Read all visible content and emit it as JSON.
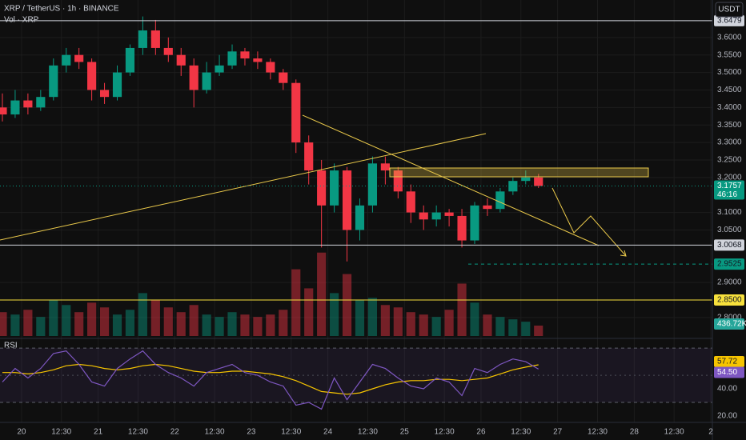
{
  "chart_data": {
    "type": "candlestick",
    "title": "XRP / TetherUS · 1h · BINANCE",
    "volume_title": "Vol · XRP",
    "currency": "USDT",
    "x": [
      -6,
      -2,
      2,
      6,
      10,
      14,
      18,
      22,
      26,
      30,
      34,
      38,
      42,
      46,
      50,
      54,
      58,
      62,
      66,
      70,
      74,
      78,
      82,
      86,
      90,
      94,
      98,
      102,
      106,
      110,
      114,
      118,
      122,
      126,
      130,
      134,
      138,
      142,
      146,
      150,
      154,
      158,
      162
    ],
    "open": [
      3.4,
      3.38,
      3.42,
      3.4,
      3.43,
      3.52,
      3.55,
      3.53,
      3.45,
      3.43,
      3.5,
      3.57,
      3.62,
      3.57,
      3.55,
      3.52,
      3.45,
      3.5,
      3.52,
      3.56,
      3.54,
      3.53,
      3.5,
      3.47,
      3.3,
      3.22,
      3.12,
      3.22,
      3.05,
      3.12,
      3.24,
      3.22,
      3.16,
      3.1,
      3.08,
      3.1,
      3.09,
      3.02,
      3.12,
      3.11,
      3.16,
      3.19,
      3.2
    ],
    "high": [
      3.44,
      3.45,
      3.44,
      3.45,
      3.54,
      3.57,
      3.57,
      3.54,
      3.47,
      3.52,
      3.58,
      3.66,
      3.65,
      3.6,
      3.57,
      3.54,
      3.53,
      3.55,
      3.58,
      3.57,
      3.56,
      3.54,
      3.51,
      3.48,
      3.32,
      3.25,
      3.24,
      3.23,
      3.14,
      3.26,
      3.26,
      3.23,
      3.18,
      3.12,
      3.12,
      3.11,
      3.11,
      3.13,
      3.14,
      3.17,
      3.2,
      3.22,
      3.21
    ],
    "low": [
      3.36,
      3.37,
      3.38,
      3.39,
      3.42,
      3.5,
      3.51,
      3.42,
      3.41,
      3.42,
      3.49,
      3.55,
      3.55,
      3.53,
      3.49,
      3.4,
      3.44,
      3.49,
      3.51,
      3.52,
      3.51,
      3.48,
      3.45,
      3.27,
      3.18,
      3.0,
      3.1,
      2.96,
      3.02,
      3.1,
      3.18,
      3.14,
      3.07,
      3.05,
      3.06,
      3.06,
      3.0,
      3.01,
      3.09,
      3.1,
      3.15,
      3.18,
      3.17
    ],
    "close": [
      3.38,
      3.42,
      3.4,
      3.43,
      3.52,
      3.55,
      3.53,
      3.45,
      3.43,
      3.5,
      3.57,
      3.62,
      3.57,
      3.55,
      3.52,
      3.45,
      3.5,
      3.52,
      3.56,
      3.54,
      3.53,
      3.5,
      3.47,
      3.3,
      3.22,
      3.12,
      3.22,
      3.05,
      3.12,
      3.24,
      3.22,
      3.16,
      3.1,
      3.08,
      3.1,
      3.09,
      3.02,
      3.12,
      3.11,
      3.16,
      3.19,
      3.2,
      3.1757
    ],
    "up_color": "#089981",
    "down_color": "#f23645",
    "xlim": [
      -6.75,
      216.5
    ],
    "xticks": [
      {
        "value": 0,
        "label": "20"
      },
      {
        "value": 12.5,
        "label": "12:30"
      },
      {
        "value": 24,
        "label": "21"
      },
      {
        "value": 36.5,
        "label": "12:30"
      },
      {
        "value": 48,
        "label": "22"
      },
      {
        "value": 60.5,
        "label": "12:30"
      },
      {
        "value": 72,
        "label": "23"
      },
      {
        "value": 84.5,
        "label": "12:30"
      },
      {
        "value": 96,
        "label": "24"
      },
      {
        "value": 108.5,
        "label": "12:30"
      },
      {
        "value": 120,
        "label": "25"
      },
      {
        "value": 132.5,
        "label": "12:30"
      },
      {
        "value": 144,
        "label": "26"
      },
      {
        "value": 156.5,
        "label": "12:30"
      },
      {
        "value": 168,
        "label": "27"
      },
      {
        "value": 180.5,
        "label": "12:30"
      },
      {
        "value": 192,
        "label": "28"
      },
      {
        "value": 204.5,
        "label": "12:30"
      },
      {
        "value": 216,
        "label": "2"
      }
    ],
    "ylim": [
      2.747,
      3.707
    ],
    "yticks": [
      {
        "value": 3.6,
        "label": "3.6000"
      },
      {
        "value": 3.55,
        "label": "3.5500"
      },
      {
        "value": 3.5,
        "label": "3.5000"
      },
      {
        "value": 3.45,
        "label": "3.4500"
      },
      {
        "value": 3.4,
        "label": "3.4000"
      },
      {
        "value": 3.35,
        "label": "3.3500"
      },
      {
        "value": 3.3,
        "label": "3.3000"
      },
      {
        "value": 3.25,
        "label": "3.2500"
      },
      {
        "value": 3.2,
        "label": "3.2000"
      },
      {
        "value": 3.1,
        "label": "3.1000"
      },
      {
        "value": 3.05,
        "label": "3.0500"
      },
      {
        "value": 2.9,
        "label": "2.9000"
      },
      {
        "value": 2.8,
        "label": "2.8000"
      }
    ],
    "grid": true,
    "price_lines": [
      {
        "value": 3.6479,
        "label": "3.6479",
        "color": "#d1d4dc",
        "style": "solid"
      },
      {
        "value": 3.0068,
        "label": "3.0068",
        "color": "#d1d4dc",
        "style": "solid"
      },
      {
        "value": 2.85,
        "label": "2.8500",
        "color": "#f7e03c",
        "style": "solid"
      },
      {
        "value": 2.9525,
        "label": "2.9525",
        "color": "#089981",
        "style": "dashed"
      }
    ],
    "last_price": {
      "value": 3.1757,
      "label": "3.1757",
      "countdown": "46:16",
      "color": "#089981"
    },
    "volume": {
      "values": [
        1000,
        900,
        1100,
        800,
        1500,
        1300,
        1000,
        1400,
        1200,
        900,
        1100,
        1800,
        1500,
        1200,
        1000,
        1300,
        900,
        800,
        1000,
        900,
        800,
        900,
        1100,
        2800,
        2000,
        3500,
        1800,
        2600,
        1500,
        1600,
        1300,
        1200,
        1000,
        900,
        800,
        1100,
        2200,
        1400,
        900,
        800,
        700,
        600,
        436.72
      ],
      "last_label": "436.72K",
      "ylim": [
        0,
        4700
      ],
      "color": "#26a69a"
    },
    "rsi": {
      "title": "RSI",
      "values": [
        45,
        55,
        48,
        55,
        66,
        68,
        58,
        45,
        42,
        55,
        62,
        68,
        58,
        52,
        48,
        42,
        52,
        55,
        58,
        52,
        50,
        45,
        42,
        28,
        30,
        25,
        48,
        32,
        45,
        58,
        55,
        48,
        42,
        40,
        48,
        45,
        35,
        55,
        52,
        58,
        62,
        60,
        54.5
      ],
      "ma": [
        52,
        52,
        51,
        52,
        54,
        57,
        58,
        57,
        55,
        54,
        55,
        57,
        58,
        57,
        55,
        53,
        52,
        52,
        53,
        53,
        52,
        51,
        49,
        46,
        42,
        38,
        37,
        36,
        37,
        40,
        43,
        45,
        46,
        46,
        47,
        47,
        46,
        47,
        48,
        51,
        54,
        56,
        57.72
      ],
      "value_label": "54.50",
      "ma_label": "57.72",
      "color": "#7e57c2",
      "ma_color": "#f7c500",
      "ylim": [
        17,
        76
      ],
      "yticks": [
        {
          "value": 40,
          "label": "40.00"
        },
        {
          "value": 20,
          "label": "20.00"
        }
      ],
      "bands": [
        30,
        70
      ],
      "midline": 50
    }
  }
}
